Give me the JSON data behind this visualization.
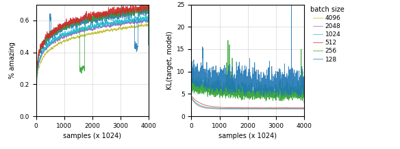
{
  "colors": {
    "128": "#1f77b4",
    "256": "#2ca02c",
    "512": "#d62728",
    "1024": "#17becf",
    "2048": "#9467bd",
    "4096": "#bcbd22"
  },
  "batch_sizes": [
    "128",
    "256",
    "512",
    "1024",
    "2048",
    "4096"
  ],
  "xlabel": "samples (x 1024)",
  "ylabel_left": "% amazing",
  "ylabel_right": "KL(target, model)",
  "legend_title": "batch size",
  "xlim": [
    0,
    4000
  ],
  "ylim_left": [
    0.0,
    0.7
  ],
  "ylim_right": [
    0,
    25
  ],
  "yticks_left": [
    0.0,
    0.2,
    0.4,
    0.6
  ],
  "yticks_right": [
    0,
    5,
    10,
    15,
    20,
    25
  ],
  "xticks": [
    0,
    1000,
    2000,
    3000,
    4000
  ],
  "n_points": 4000,
  "seed": 42
}
